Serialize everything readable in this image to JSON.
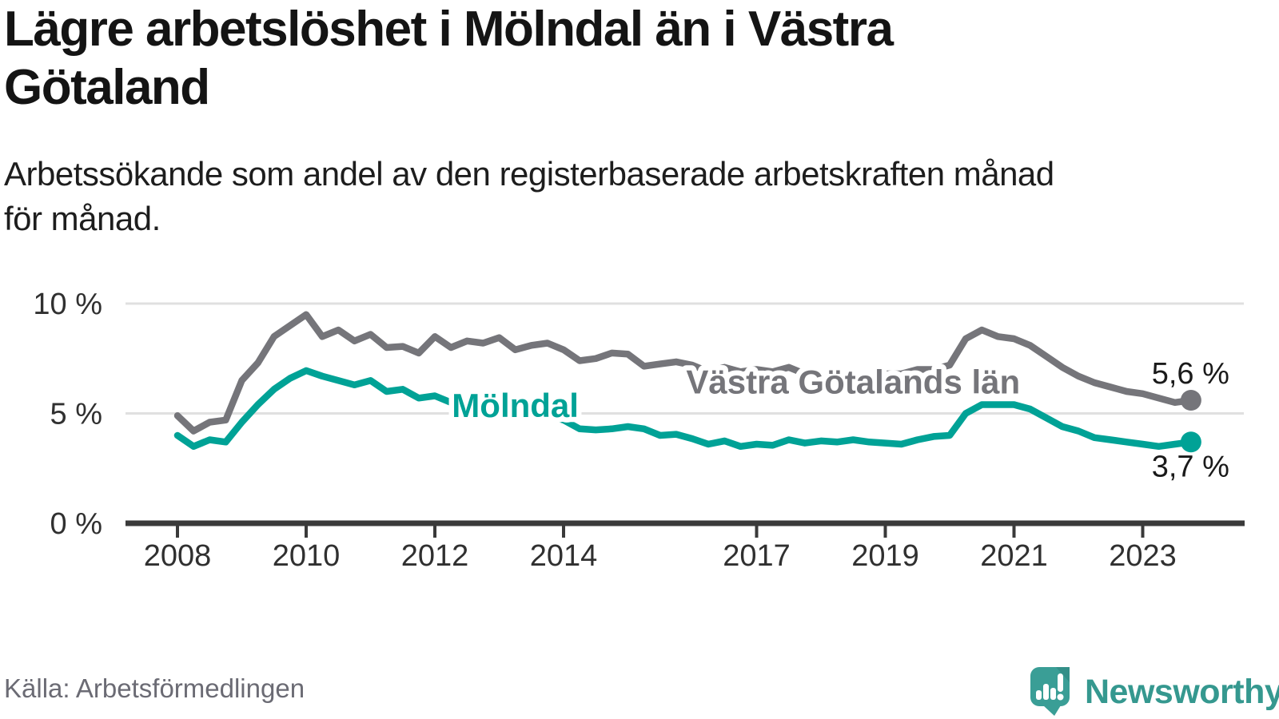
{
  "header": {
    "title_lines": [
      "Lägre arbetslöshet i Mölndal än i Västra",
      "Götaland"
    ],
    "subtitle_lines": [
      "Arbetssökande som andel av den registerbaserade arbetskraften månad",
      "för månad."
    ]
  },
  "footer": {
    "source": "Källa: Arbetsförmedlingen",
    "logo_text": "Newsworthy",
    "logo_icon": "newsworthy-speech-bubble-bar-chart-icon",
    "logo_color": "#3a9e96"
  },
  "colors": {
    "molndal_teal": "#00a296",
    "vastra_gray": "#75757a",
    "gridline": "#e0e0e0",
    "axis": "#3a3a3a",
    "end_label_text": "#1a1a1a"
  },
  "chart_data": {
    "type": "line",
    "title": "Lägre arbetslöshet i Mölndal än i Västra Götaland",
    "subtitle": "Arbetssökande som andel av den registerbaserade arbetskraften månad för månad.",
    "unit": "%",
    "x_start": 2008.0,
    "x_step": 0.25,
    "x_resolution_note": "quarterly estimates read from monthly line, Jan 2008 - Oct 2023",
    "xlim": [
      2007.7,
      2024.6
    ],
    "ylim": [
      0,
      11
    ],
    "grid": "horizontal",
    "legend_position": "inline-labels",
    "x_ticks": [
      2008,
      2010,
      2012,
      2014,
      2017,
      2019,
      2021,
      2023
    ],
    "y_ticks": [
      {
        "value": 0,
        "label": "0 %"
      },
      {
        "value": 5,
        "label": "5 %"
      },
      {
        "value": 10,
        "label": "10 %"
      }
    ],
    "series": [
      {
        "name": "Västra Götalands län",
        "slug": "vastra-gotalands-lan",
        "color": "#75757a",
        "label": {
          "text": "Västra Götalands län",
          "x": 2018.5,
          "y": 6.45
        },
        "end_label": {
          "text": "5,6 %",
          "side": "above"
        },
        "end_value": 5.6,
        "values": [
          4.9,
          4.2,
          4.6,
          4.7,
          6.5,
          7.3,
          8.5,
          9.0,
          9.5,
          8.5,
          8.8,
          8.3,
          8.6,
          8.0,
          8.05,
          7.75,
          8.5,
          8.0,
          8.3,
          8.2,
          8.45,
          7.9,
          8.1,
          8.2,
          7.9,
          7.4,
          7.5,
          7.75,
          7.7,
          7.15,
          7.25,
          7.35,
          7.2,
          6.9,
          7.1,
          6.9,
          7.0,
          6.9,
          7.1,
          6.8,
          6.7,
          6.5,
          6.7,
          6.6,
          6.8,
          6.8,
          7.0,
          7.0,
          7.2,
          8.4,
          8.8,
          8.5,
          8.4,
          8.1,
          7.6,
          7.1,
          6.7,
          6.4,
          6.2,
          6.0,
          5.9,
          5.7,
          5.5,
          5.6
        ]
      },
      {
        "name": "Mölndal",
        "slug": "molndal",
        "color": "#00a296",
        "label": {
          "text": "Mölndal",
          "x": 2013.25,
          "y": 5.38
        },
        "end_label": {
          "text": "3,7 %",
          "side": "below"
        },
        "end_value": 3.7,
        "values": [
          4.0,
          3.5,
          3.8,
          3.7,
          4.6,
          5.4,
          6.1,
          6.6,
          6.95,
          6.7,
          6.5,
          6.3,
          6.5,
          6.0,
          6.1,
          5.7,
          5.8,
          5.5,
          5.6,
          5.5,
          5.5,
          5.3,
          5.1,
          4.9,
          4.7,
          4.3,
          4.25,
          4.3,
          4.4,
          4.3,
          4.0,
          4.05,
          3.85,
          3.6,
          3.75,
          3.5,
          3.6,
          3.55,
          3.8,
          3.65,
          3.75,
          3.7,
          3.8,
          3.7,
          3.65,
          3.6,
          3.8,
          3.95,
          4.0,
          5.0,
          5.4,
          5.4,
          5.4,
          5.2,
          4.8,
          4.4,
          4.2,
          3.9,
          3.8,
          3.7,
          3.6,
          3.5,
          3.6,
          3.7
        ]
      }
    ]
  }
}
